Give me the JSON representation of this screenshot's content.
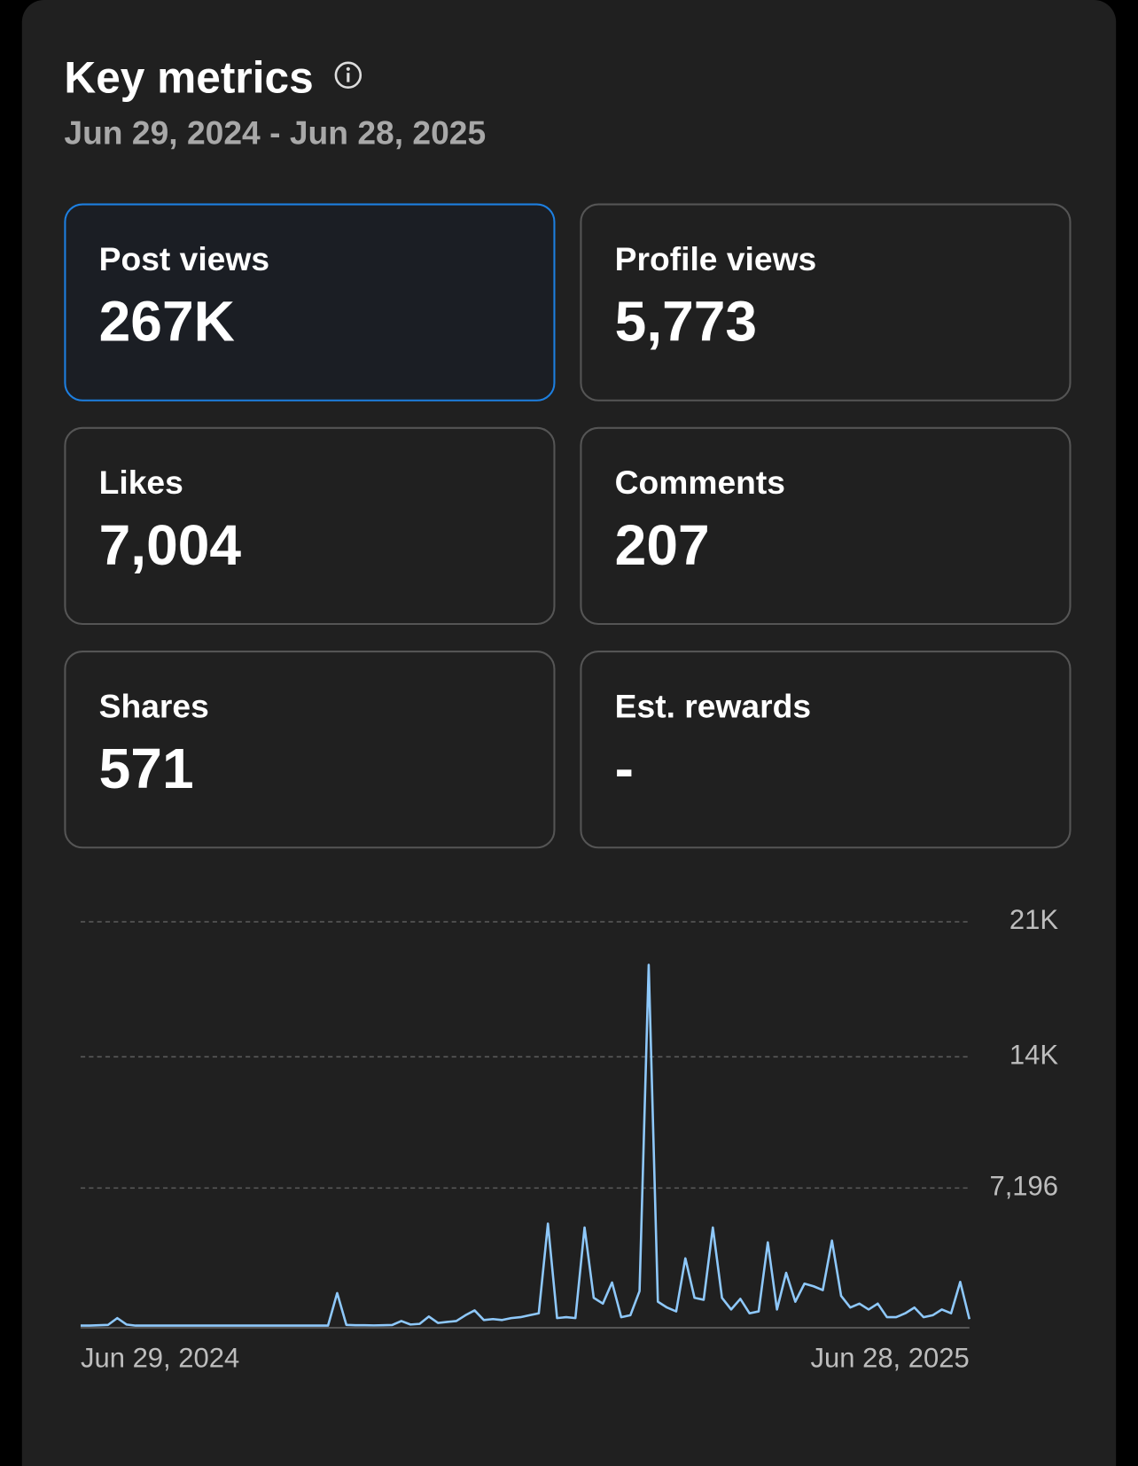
{
  "header": {
    "title": "Key metrics",
    "date_range": "Jun 29, 2024 - Jun 28, 2025"
  },
  "metrics": [
    {
      "label": "Post views",
      "value": "267K"
    },
    {
      "label": "Profile views",
      "value": "5,773"
    },
    {
      "label": "Likes",
      "value": "7,004"
    },
    {
      "label": "Comments",
      "value": "207"
    },
    {
      "label": "Shares",
      "value": "571"
    },
    {
      "label": "Est. rewards",
      "value": "-"
    }
  ],
  "chart_data": {
    "type": "line",
    "color": "#8ec8fa",
    "grid": true,
    "categories": [
      "Jun 29, 2024",
      null,
      null,
      null,
      null,
      null,
      null,
      null,
      null,
      null,
      null,
      null,
      null,
      null,
      null,
      null,
      null,
      null,
      null,
      null,
      null,
      null,
      null,
      null,
      null,
      null,
      null,
      null,
      null,
      null,
      null,
      null,
      null,
      null,
      null,
      null,
      null,
      null,
      null,
      null,
      null,
      null,
      null,
      null,
      null,
      null,
      null,
      null,
      null,
      null,
      null,
      null,
      null,
      null,
      null,
      null,
      null,
      null,
      null,
      null,
      null,
      null,
      null,
      null,
      null,
      null,
      null,
      null,
      null,
      null,
      null,
      null,
      null,
      null,
      null,
      null,
      null,
      null,
      null,
      null,
      null,
      null,
      null,
      null,
      null,
      null,
      null,
      null,
      null,
      null,
      null,
      null,
      null,
      null,
      null,
      null,
      null,
      "Jun 28, 2025"
    ],
    "values": [
      60,
      60,
      80,
      100,
      450,
      120,
      60,
      60,
      60,
      60,
      60,
      60,
      60,
      60,
      60,
      60,
      60,
      60,
      60,
      60,
      60,
      60,
      60,
      60,
      60,
      60,
      60,
      60,
      1750,
      100,
      80,
      80,
      70,
      80,
      90,
      300,
      120,
      150,
      530,
      200,
      250,
      300,
      600,
      850,
      350,
      400,
      350,
      450,
      500,
      600,
      700,
      5350,
      450,
      500,
      450,
      5150,
      1500,
      1200,
      2300,
      500,
      600,
      1850,
      18770,
      1300,
      1000,
      800,
      3550,
      1500,
      1400,
      5150,
      1500,
      900,
      1450,
      700,
      800,
      4380,
      900,
      2800,
      1300,
      2240,
      2100,
      1900,
      4470,
      1600,
      1000,
      1200,
      900,
      1200,
      500,
      500,
      700,
      1000,
      500,
      600,
      900,
      700,
      2330,
      400
    ],
    "ylim": [
      0,
      21000
    ],
    "yticks": [
      {
        "value": 7196,
        "label": "7,196"
      },
      {
        "value": 14000,
        "label": "14K"
      },
      {
        "value": 21000,
        "label": "21K"
      }
    ]
  }
}
